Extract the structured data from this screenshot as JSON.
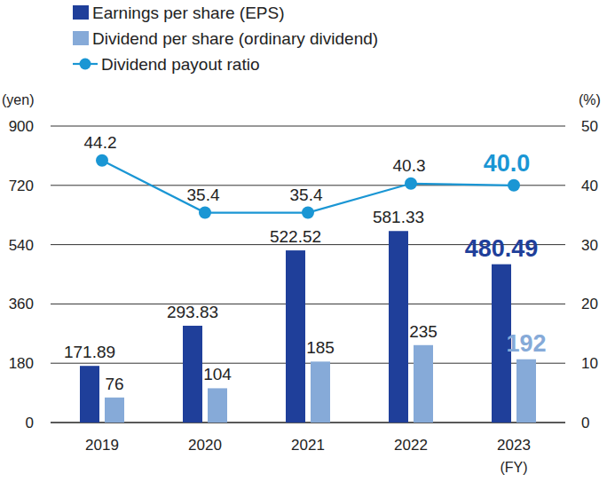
{
  "chart_data": {
    "type": "bar",
    "categories": [
      "2019",
      "2020",
      "2021",
      "2022",
      "2023"
    ],
    "xlabel": "(FY)",
    "ylabel": "(yen)",
    "y2label": "(%)",
    "ylim": [
      0,
      900
    ],
    "yticks": [
      0,
      180,
      360,
      540,
      720,
      900
    ],
    "y2lim": [
      0,
      50
    ],
    "y2ticks": [
      0,
      10,
      20,
      30,
      40,
      50
    ],
    "grid": true,
    "legend": "top-left",
    "data_labels": true,
    "series": [
      {
        "name": "Earnings per share (EPS)",
        "type": "bar",
        "color": "#1f3f9a",
        "values": [
          171.89,
          293.83,
          522.52,
          581.33,
          480.49
        ]
      },
      {
        "name": "Dividend per share (ordinary dividend)",
        "type": "bar",
        "color": "#86aad8",
        "values": [
          76,
          104,
          185,
          235,
          192
        ]
      },
      {
        "name": "Dividend payout ratio",
        "type": "line",
        "axis": "y2",
        "color": "#1a96d4",
        "marker": "circle",
        "values": [
          44.2,
          35.4,
          35.4,
          40.3,
          40.0
        ],
        "value_labels": [
          "44.2",
          "35.4",
          "35.4",
          "40.3",
          "40.0"
        ]
      }
    ]
  }
}
